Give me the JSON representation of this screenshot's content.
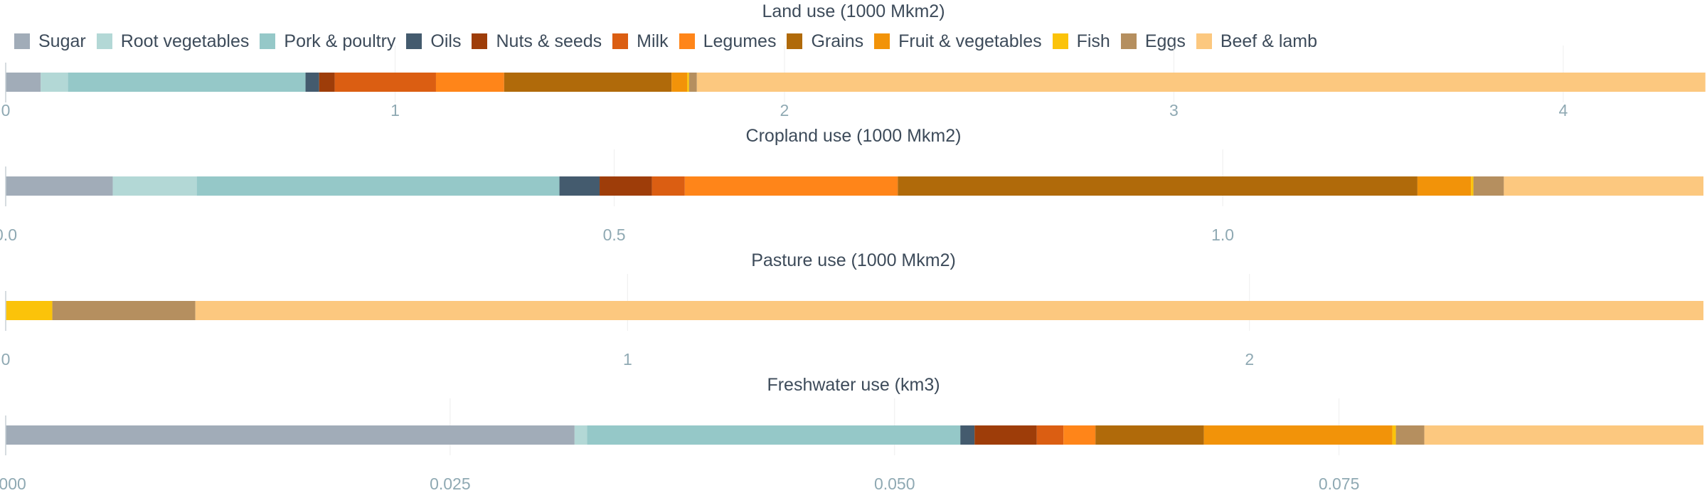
{
  "legend": [
    {
      "name": "Sugar",
      "color": "#a1acb8"
    },
    {
      "name": "Root vegetables",
      "color": "#b3d8d6"
    },
    {
      "name": "Pork & poultry",
      "color": "#95c8c8"
    },
    {
      "name": "Oils",
      "color": "#445b6e"
    },
    {
      "name": "Nuts & seeds",
      "color": "#9e3d09"
    },
    {
      "name": "Milk",
      "color": "#db5e12"
    },
    {
      "name": "Legumes",
      "color": "#ff8519"
    },
    {
      "name": "Grains",
      "color": "#b06a0a"
    },
    {
      "name": "Fruit & vegetables",
      "color": "#f29309"
    },
    {
      "name": "Fish",
      "color": "#fbc30a"
    },
    {
      "name": "Eggs",
      "color": "#b58f5f"
    },
    {
      "name": "Beef & lamb",
      "color": "#fcc87f"
    }
  ],
  "chart_data": [
    {
      "type": "bar",
      "orientation": "horizontal-stacked",
      "title": "Land use (1000 Mkm2)",
      "xlim": [
        0,
        4.36
      ],
      "ticks": [
        0,
        1,
        2,
        3,
        4
      ],
      "tick_labels": [
        "0",
        "1",
        "2",
        "3",
        "4"
      ],
      "series": [
        {
          "name": "Sugar",
          "value": 0.09
        },
        {
          "name": "Root vegetables",
          "value": 0.07
        },
        {
          "name": "Pork & poultry",
          "value": 0.61
        },
        {
          "name": "Oils",
          "value": 0.035
        },
        {
          "name": "Nuts & seeds",
          "value": 0.04
        },
        {
          "name": "Milk",
          "value": 0.26
        },
        {
          "name": "Legumes",
          "value": 0.175
        },
        {
          "name": "Grains",
          "value": 0.43
        },
        {
          "name": "Fruit & vegetables",
          "value": 0.04
        },
        {
          "name": "Fish",
          "value": 0.005
        },
        {
          "name": "Eggs",
          "value": 0.02
        },
        {
          "name": "Beef & lamb",
          "value": 2.59
        }
      ]
    },
    {
      "type": "bar",
      "orientation": "horizontal-stacked",
      "title": "Cropland use (1000 Mkm2)",
      "xlim": [
        0,
        1.395
      ],
      "ticks": [
        0,
        0.5,
        1.0
      ],
      "tick_labels": [
        "0.0",
        "0.5",
        "1.0"
      ],
      "series": [
        {
          "name": "Sugar",
          "value": 0.088
        },
        {
          "name": "Root vegetables",
          "value": 0.069
        },
        {
          "name": "Pork & poultry",
          "value": 0.298
        },
        {
          "name": "Oils",
          "value": 0.033
        },
        {
          "name": "Nuts & seeds",
          "value": 0.043
        },
        {
          "name": "Milk",
          "value": 0.027
        },
        {
          "name": "Legumes",
          "value": 0.175
        },
        {
          "name": "Grains",
          "value": 0.427
        },
        {
          "name": "Fruit & vegetables",
          "value": 0.044
        },
        {
          "name": "Fish",
          "value": 0.002
        },
        {
          "name": "Eggs",
          "value": 0.025
        },
        {
          "name": "Beef & lamb",
          "value": 0.164
        }
      ]
    },
    {
      "type": "bar",
      "orientation": "horizontal-stacked",
      "title": "Pasture use (1000 Mkm2)",
      "xlim": [
        0,
        2.73
      ],
      "ticks": [
        0,
        1,
        2
      ],
      "tick_labels": [
        "0",
        "1",
        "2"
      ],
      "series": [
        {
          "name": "Fish",
          "value": 0.075
        },
        {
          "name": "Eggs",
          "value": 0.23
        },
        {
          "name": "Beef & lamb",
          "value": 2.425
        }
      ]
    },
    {
      "type": "bar",
      "orientation": "horizontal-stacked",
      "title": "Freshwater use (km3)",
      "xlim": [
        0,
        0.0955
      ],
      "ticks": [
        0,
        0.025,
        0.05,
        0.075
      ],
      "tick_labels": [
        "0.000",
        "0.025",
        "0.050",
        "0.075"
      ],
      "series": [
        {
          "name": "Sugar",
          "value": 0.032
        },
        {
          "name": "Root vegetables",
          "value": 0.0007
        },
        {
          "name": "Pork & poultry",
          "value": 0.021
        },
        {
          "name": "Oils",
          "value": 0.0008
        },
        {
          "name": "Nuts & seeds",
          "value": 0.0035
        },
        {
          "name": "Milk",
          "value": 0.0015
        },
        {
          "name": "Legumes",
          "value": 0.0018
        },
        {
          "name": "Grains",
          "value": 0.0061
        },
        {
          "name": "Fruit & vegetables",
          "value": 0.0106
        },
        {
          "name": "Fish",
          "value": 0.0002
        },
        {
          "name": "Eggs",
          "value": 0.0016
        },
        {
          "name": "Beef & lamb",
          "value": 0.0157
        }
      ]
    }
  ]
}
